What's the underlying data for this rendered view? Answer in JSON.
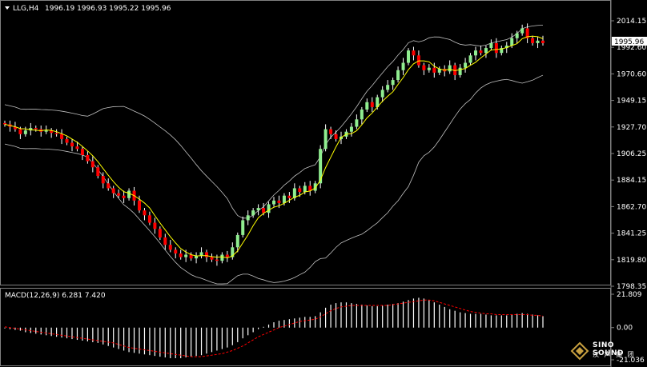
{
  "header": {
    "symbol": "LLG,H4",
    "ohlc": "1996.19 1996.93 1995.22 1995.96"
  },
  "price_axis": {
    "ticks": [
      "2014.15",
      "1992.60",
      "1970.60",
      "1949.15",
      "1927.70",
      "1906.25",
      "1884.15",
      "1862.70",
      "1841.25",
      "1819.80",
      "1798.35"
    ],
    "current_price": "1995.96"
  },
  "macd": {
    "label": "MACD(12,26,9) 6.281 7.420",
    "ticks": [
      "21.809",
      "0.00",
      "-21.036"
    ]
  },
  "logo": {
    "line1": "SINO SOUND",
    "line2": "汉 声 集 团"
  },
  "colors": {
    "background": "#000000",
    "bull_candle": "#90ee90",
    "bear_candle": "#ff0000",
    "ma_line": "#ffff00",
    "bollinger": "#c0c0c0",
    "macd_hist": "#ffffff",
    "macd_signal": "#ff0000"
  },
  "chart_data": {
    "type": "candlestick",
    "ylim": [
      1798.35,
      2020
    ],
    "closes": [
      1930,
      1928,
      1926,
      1922,
      1925,
      1927,
      1926,
      1924,
      1925,
      1923,
      1922,
      1918,
      1915,
      1912,
      1910,
      1905,
      1900,
      1895,
      1888,
      1882,
      1878,
      1874,
      1872,
      1870,
      1876,
      1868,
      1860,
      1856,
      1850,
      1845,
      1838,
      1832,
      1828,
      1825,
      1822,
      1824,
      1821,
      1823,
      1826,
      1822,
      1820,
      1819,
      1824,
      1822,
      1830,
      1840,
      1852,
      1856,
      1860,
      1862,
      1858,
      1865,
      1868,
      1866,
      1872,
      1870,
      1878,
      1875,
      1880,
      1876,
      1882,
      1910,
      1926,
      1922,
      1918,
      1920,
      1924,
      1928,
      1934,
      1942,
      1948,
      1944,
      1952,
      1958,
      1962,
      1966,
      1974,
      1980,
      1990,
      1986,
      1978,
      1974,
      1976,
      1972,
      1975,
      1973,
      1978,
      1970,
      1976,
      1980,
      1986,
      1990,
      1988,
      1992,
      1996,
      1988,
      1992,
      1994,
      2000,
      2004,
      2008,
      2000,
      1996,
      1998,
      1996
    ],
    "macd_hist": [
      -0.5,
      -1,
      -1.5,
      -2,
      -3,
      -3.5,
      -4,
      -4.5,
      -5,
      -5.5,
      -6,
      -6.5,
      -7,
      -7.5,
      -8,
      -8.5,
      -9,
      -9.5,
      -10,
      -11,
      -12,
      -13,
      -14,
      -15,
      -16,
      -16.5,
      -17,
      -17.5,
      -18,
      -18.5,
      -19,
      -19.5,
      -20,
      -20,
      -20,
      -19.5,
      -19,
      -18.5,
      -18,
      -17,
      -16,
      -15,
      -14,
      -13,
      -11.5,
      -9.5,
      -7,
      -5,
      -3,
      -1,
      0.5,
      2,
      3.5,
      4.5,
      5,
      5.5,
      6,
      6.5,
      7,
      7,
      7.5,
      10,
      13,
      15,
      16,
      16.5,
      16.5,
      16,
      15.5,
      15,
      14.5,
      14,
      14,
      14.5,
      15,
      15.5,
      16,
      17,
      18,
      19,
      19.5,
      19,
      18,
      16.5,
      15,
      13.5,
      12,
      11,
      10,
      9.5,
      9,
      9,
      9,
      8.5,
      8,
      8,
      8,
      8,
      8.5,
      9,
      9.5,
      9,
      8.5,
      8,
      7.5
    ],
    "macd_signal": [
      0.5,
      0,
      -0.5,
      -1,
      -1.5,
      -2,
      -2.5,
      -3,
      -3.5,
      -4,
      -4.5,
      -5,
      -5.5,
      -6,
      -6.5,
      -7,
      -7.5,
      -8,
      -8.5,
      -9,
      -9.5,
      -10,
      -11,
      -12,
      -13,
      -13.5,
      -14,
      -14.5,
      -15,
      -15.5,
      -16,
      -16.5,
      -17,
      -17.5,
      -18,
      -18.5,
      -19,
      -19,
      -19,
      -18.5,
      -18,
      -17.5,
      -17,
      -16,
      -15,
      -13.5,
      -12,
      -10,
      -8,
      -6,
      -4.5,
      -3,
      -1.5,
      0,
      1,
      2,
      3,
      4,
      4.5,
      5,
      5.5,
      7,
      9,
      11,
      12.5,
      13.5,
      14,
      14.5,
      14.5,
      14.5,
      14.5,
      14.5,
      14.5,
      14.5,
      14.5,
      15,
      15.5,
      16,
      16.5,
      17,
      17.5,
      18,
      18,
      17.5,
      16.5,
      15.5,
      14.5,
      13.5,
      12.5,
      11.5,
      10.5,
      10,
      9.5,
      9,
      9,
      8.5,
      8.5,
      8.5,
      8.5,
      8.5,
      8.5,
      8.5,
      8,
      8,
      7.5
    ],
    "macd_ylim": [
      -21.036,
      21.809
    ]
  }
}
